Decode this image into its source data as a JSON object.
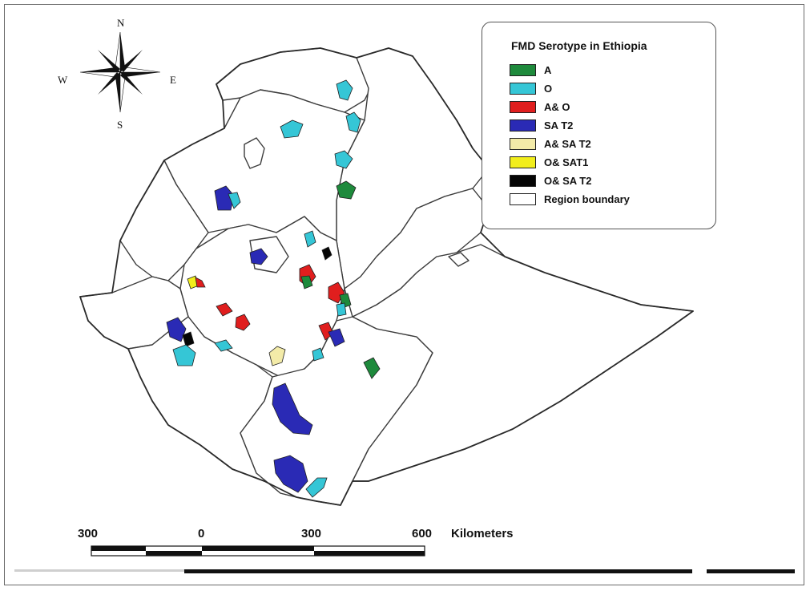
{
  "compass": {
    "north": "N",
    "south": "S",
    "east": "E",
    "west": "W"
  },
  "legend": {
    "title": "FMD Serotype in Ethiopia",
    "items": [
      {
        "label": "A",
        "color": "#1e8a3c",
        "icon": "green-swatch"
      },
      {
        "label": "O",
        "color": "#35c6d6",
        "icon": "cyan-swatch"
      },
      {
        "label": "A& O",
        "color": "#e01e1e",
        "icon": "red-swatch"
      },
      {
        "label": "SA T2",
        "color": "#2a2ab5",
        "icon": "blue-swatch"
      },
      {
        "label": "A& SA T2",
        "color": "#f3eba8",
        "icon": "light-yellow-swatch"
      },
      {
        "label": "O& SAT1",
        "color": "#f2ee1c",
        "icon": "yellow-swatch"
      },
      {
        "label": "O& SA T2",
        "color": "#050505",
        "icon": "black-swatch"
      },
      {
        "label": "Region boundary",
        "color": "#ffffff",
        "icon": "white-swatch"
      }
    ]
  },
  "scale_bar": {
    "labels": [
      "300",
      "0",
      "300",
      "600"
    ],
    "unit": "Kilometers"
  }
}
